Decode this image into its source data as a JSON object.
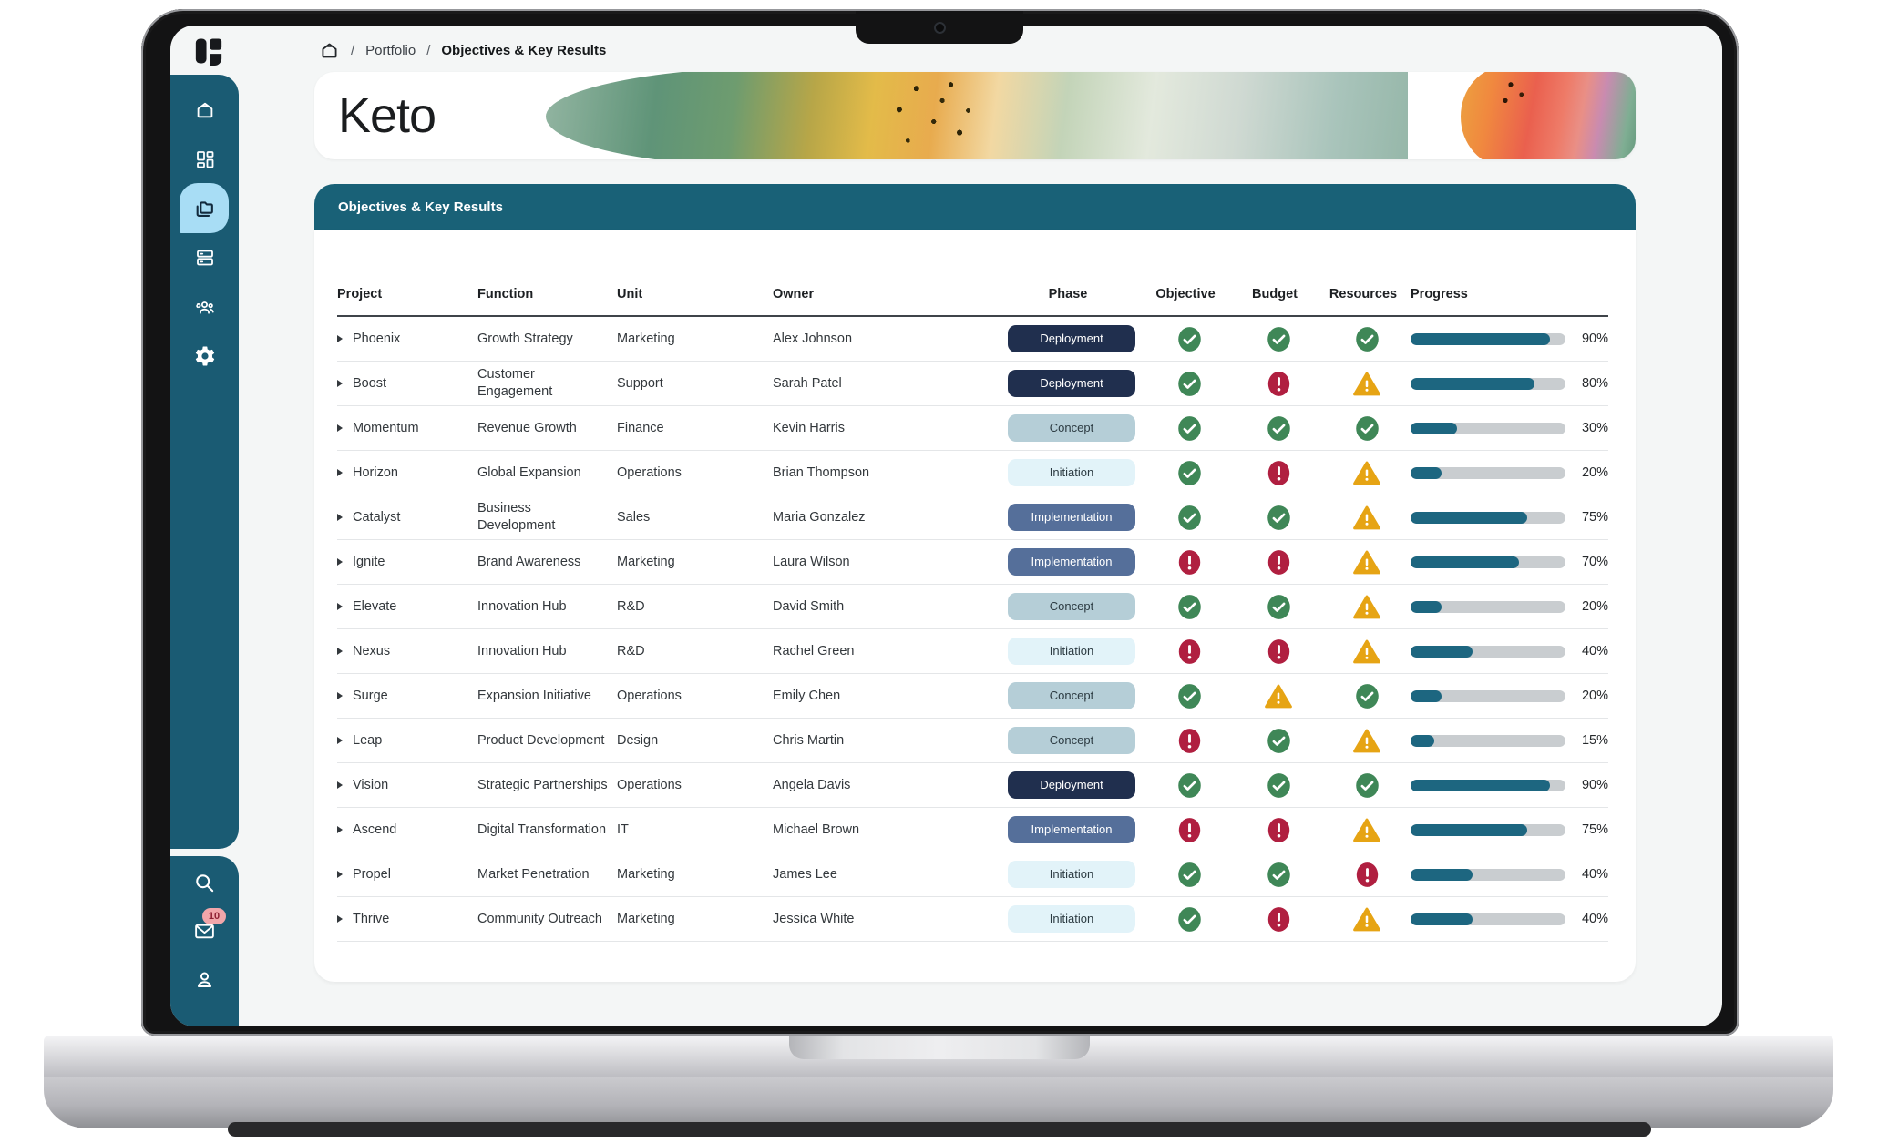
{
  "breadcrumb": {
    "separator": "/",
    "section": "Portfolio",
    "page": "Objectives & Key Results"
  },
  "header": {
    "title": "Keto"
  },
  "section_bar": {
    "title": "Objectives & Key Results"
  },
  "sidebar": {
    "nav_items": [
      {
        "icon": "home-icon",
        "active": false
      },
      {
        "icon": "dashboard-icon",
        "active": false
      },
      {
        "icon": "portfolio-icon",
        "active": true
      },
      {
        "icon": "board-icon",
        "active": false
      },
      {
        "icon": "team-icon",
        "active": false
      },
      {
        "icon": "settings-icon",
        "active": false
      }
    ],
    "bottom_items": [
      {
        "icon": "search-icon"
      },
      {
        "icon": "mail-icon",
        "badge": "10"
      },
      {
        "icon": "profile-icon"
      }
    ]
  },
  "table": {
    "columns": [
      "Project",
      "Function",
      "Unit",
      "Owner",
      "Phase",
      "Objective",
      "Budget",
      "Resources",
      "Progress"
    ],
    "phases": {
      "Deployment": {
        "bg": "#202f4e",
        "fg": "#ffffff"
      },
      "Concept": {
        "bg": "#b5ced7",
        "fg": "#2c3b42"
      },
      "Initiation": {
        "bg": "#e2f3f9",
        "fg": "#2c3b42"
      },
      "Implementation": {
        "bg": "#556f9a",
        "fg": "#ffffff"
      }
    },
    "rows": [
      {
        "project": "Phoenix",
        "function": "Growth Strategy",
        "unit": "Marketing",
        "owner": "Alex Johnson",
        "phase": "Deployment",
        "objective": "ok",
        "budget": "ok",
        "resources": "ok",
        "progress": 90,
        "progress_label": "90%"
      },
      {
        "project": "Boost",
        "function": "Customer Engagement",
        "unit": "Support",
        "owner": "Sarah Patel",
        "phase": "Deployment",
        "objective": "ok",
        "budget": "alert",
        "resources": "warn",
        "progress": 80,
        "progress_label": "80%"
      },
      {
        "project": "Momentum",
        "function": "Revenue Growth",
        "unit": "Finance",
        "owner": "Kevin Harris",
        "phase": "Concept",
        "objective": "ok",
        "budget": "ok",
        "resources": "ok",
        "progress": 30,
        "progress_label": "30%"
      },
      {
        "project": "Horizon",
        "function": "Global Expansion",
        "unit": "Operations",
        "owner": "Brian Thompson",
        "phase": "Initiation",
        "objective": "ok",
        "budget": "alert",
        "resources": "warn",
        "progress": 20,
        "progress_label": "20%"
      },
      {
        "project": "Catalyst",
        "function": "Business Development",
        "unit": "Sales",
        "owner": "Maria Gonzalez",
        "phase": "Implementation",
        "objective": "ok",
        "budget": "ok",
        "resources": "warn",
        "progress": 75,
        "progress_label": "75%"
      },
      {
        "project": "Ignite",
        "function": "Brand Awareness",
        "unit": "Marketing",
        "owner": "Laura Wilson",
        "phase": "Implementation",
        "objective": "alert",
        "budget": "alert",
        "resources": "warn",
        "progress": 70,
        "progress_label": "70%"
      },
      {
        "project": "Elevate",
        "function": "Innovation Hub",
        "unit": "R&D",
        "owner": "David Smith",
        "phase": "Concept",
        "objective": "ok",
        "budget": "ok",
        "resources": "warn",
        "progress": 20,
        "progress_label": "20%"
      },
      {
        "project": "Nexus",
        "function": "Innovation Hub",
        "unit": "R&D",
        "owner": "Rachel Green",
        "phase": "Initiation",
        "objective": "alert",
        "budget": "alert",
        "resources": "warn",
        "progress": 40,
        "progress_label": "40%"
      },
      {
        "project": "Surge",
        "function": "Expansion Initiative",
        "unit": "Operations",
        "owner": "Emily Chen",
        "phase": "Concept",
        "objective": "ok",
        "budget": "warn",
        "resources": "ok",
        "progress": 20,
        "progress_label": "20%"
      },
      {
        "project": "Leap",
        "function": "Product Development",
        "unit": "Design",
        "owner": "Chris Martin",
        "phase": "Concept",
        "objective": "alert",
        "budget": "ok",
        "resources": "warn",
        "progress": 15,
        "progress_label": "15%"
      },
      {
        "project": "Vision",
        "function": "Strategic Partnerships",
        "unit": "Operations",
        "owner": "Angela Davis",
        "phase": "Deployment",
        "objective": "ok",
        "budget": "ok",
        "resources": "ok",
        "progress": 90,
        "progress_label": "90%"
      },
      {
        "project": "Ascend",
        "function": "Digital Transformation",
        "unit": "IT",
        "owner": "Michael Brown",
        "phase": "Implementation",
        "objective": "alert",
        "budget": "alert",
        "resources": "warn",
        "progress": 75,
        "progress_label": "75%"
      },
      {
        "project": "Propel",
        "function": "Market Penetration",
        "unit": "Marketing",
        "owner": "James Lee",
        "phase": "Initiation",
        "objective": "ok",
        "budget": "ok",
        "resources": "alert",
        "progress": 40,
        "progress_label": "40%"
      },
      {
        "project": "Thrive",
        "function": "Community Outreach",
        "unit": "Marketing",
        "owner": "Jessica White",
        "phase": "Initiation",
        "objective": "ok",
        "budget": "alert",
        "resources": "warn",
        "progress": 40,
        "progress_label": "40%"
      }
    ]
  },
  "colors": {
    "sidebar": "#1a5b73",
    "sidebar_active": "#a8ddf5",
    "section_bar": "#196177",
    "progress_fill": "#1d6680",
    "progress_track": "#c9cdd0",
    "status_ok": "#3f8757",
    "status_alert": "#b01f40",
    "status_warn": "#e6a414",
    "badge_bg": "#f1a6aa",
    "badge_text": "#8e2033"
  }
}
